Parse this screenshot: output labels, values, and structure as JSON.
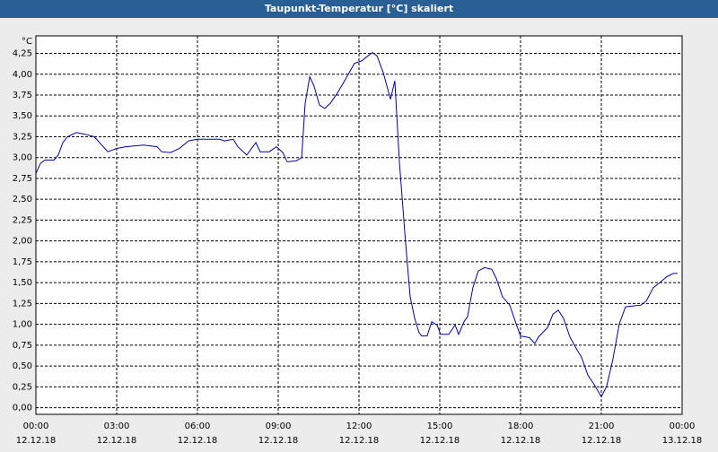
{
  "chart_data": {
    "type": "line",
    "title": "Taupunkt-Temperatur [°C] skaliert",
    "y_unit": "°C",
    "x": [
      0,
      0.17,
      0.33,
      0.67,
      0.83,
      1,
      1.17,
      1.5,
      1.83,
      2.17,
      2.5,
      2.67,
      3,
      3.33,
      4,
      4.5,
      4.67,
      5,
      5.33,
      5.67,
      6,
      6.83,
      7,
      7.33,
      7.5,
      7.83,
      8.17,
      8.33,
      8.67,
      8.93,
      9.17,
      9.33,
      9.67,
      9.87,
      10,
      10.17,
      10.33,
      10.53,
      10.73,
      10.93,
      11.17,
      11.5,
      11.83,
      12.1,
      12.33,
      12.5,
      12.67,
      12.9,
      13.17,
      13.33,
      13.5,
      13.73,
      13.9,
      14.07,
      14.23,
      14.33,
      14.53,
      14.7,
      14.9,
      15.03,
      15.33,
      15.57,
      15.7,
      15.9,
      16.03,
      16.23,
      16.43,
      16.67,
      16.93,
      17.1,
      17.33,
      17.6,
      17.83,
      18,
      18.33,
      18.53,
      18.67,
      19,
      19.2,
      19.4,
      19.6,
      19.83,
      20.07,
      20.27,
      20.5,
      20.73,
      21,
      21.2,
      21.43,
      21.67,
      21.9,
      22.17,
      22.47,
      22.67,
      22.93,
      23.17,
      23.43,
      23.67,
      23.83
    ],
    "series": [
      {
        "color": "#0000b0",
        "values": [
          2.81,
          2.93,
          2.97,
          2.97,
          3.03,
          3.18,
          3.25,
          3.3,
          3.28,
          3.25,
          3.13,
          3.07,
          3.11,
          3.13,
          3.15,
          3.13,
          3.07,
          3.06,
          3.11,
          3.2,
          3.22,
          3.22,
          3.2,
          3.22,
          3.13,
          3.03,
          3.18,
          3.07,
          3.07,
          3.13,
          3.06,
          2.95,
          2.96,
          3.0,
          3.65,
          3.97,
          3.86,
          3.63,
          3.59,
          3.65,
          3.76,
          3.94,
          4.13,
          4.16,
          4.22,
          4.26,
          4.22,
          4.02,
          3.7,
          3.92,
          2.95,
          1.98,
          1.33,
          1.07,
          0.9,
          0.86,
          0.86,
          1.03,
          0.99,
          0.88,
          0.88,
          0.99,
          0.88,
          1.03,
          1.09,
          1.44,
          1.64,
          1.68,
          1.66,
          1.55,
          1.33,
          1.23,
          1.01,
          0.86,
          0.84,
          0.77,
          0.85,
          0.96,
          1.12,
          1.17,
          1.07,
          0.85,
          0.71,
          0.6,
          0.39,
          0.28,
          0.13,
          0.26,
          0.58,
          1.01,
          1.21,
          1.22,
          1.23,
          1.28,
          1.44,
          1.5,
          1.57,
          1.61,
          1.61
        ]
      }
    ],
    "xlim": [
      0,
      24
    ],
    "xticks": [
      {
        "value": 0,
        "label": "00:00"
      },
      {
        "value": 3,
        "label": "03:00"
      },
      {
        "value": 6,
        "label": "06:00"
      },
      {
        "value": 9,
        "label": "09:00"
      },
      {
        "value": 12,
        "label": "12:00"
      },
      {
        "value": 15,
        "label": "15:00"
      },
      {
        "value": 18,
        "label": "18:00"
      },
      {
        "value": 21,
        "label": "21:00"
      },
      {
        "value": 24,
        "label": "00:00"
      }
    ],
    "xtick_dates": [
      "12.12.18",
      "12.12.18",
      "12.12.18",
      "12.12.18",
      "12.12.18",
      "12.12.18",
      "12.12.18",
      "12.12.18",
      "13.12.18"
    ],
    "ylim": [
      -0.08,
      4.46
    ],
    "yticks": [
      {
        "value": 0,
        "label": "0,00"
      },
      {
        "value": 0.25,
        "label": "0,25"
      },
      {
        "value": 0.5,
        "label": "0,50"
      },
      {
        "value": 0.75,
        "label": "0,75"
      },
      {
        "value": 1,
        "label": "1,00"
      },
      {
        "value": 1.25,
        "label": "1,25"
      },
      {
        "value": 1.5,
        "label": "1,50"
      },
      {
        "value": 1.75,
        "label": "1,75"
      },
      {
        "value": 2,
        "label": "2,00"
      },
      {
        "value": 2.25,
        "label": "2,25"
      },
      {
        "value": 2.5,
        "label": "2,50"
      },
      {
        "value": 2.75,
        "label": "2,75"
      },
      {
        "value": 3,
        "label": "3,00"
      },
      {
        "value": 3.25,
        "label": "3,25"
      },
      {
        "value": 3.5,
        "label": "3,50"
      },
      {
        "value": 3.75,
        "label": "3,75"
      },
      {
        "value": 4,
        "label": "4,00"
      },
      {
        "value": 4.25,
        "label": "4,25"
      }
    ],
    "grid": true
  }
}
